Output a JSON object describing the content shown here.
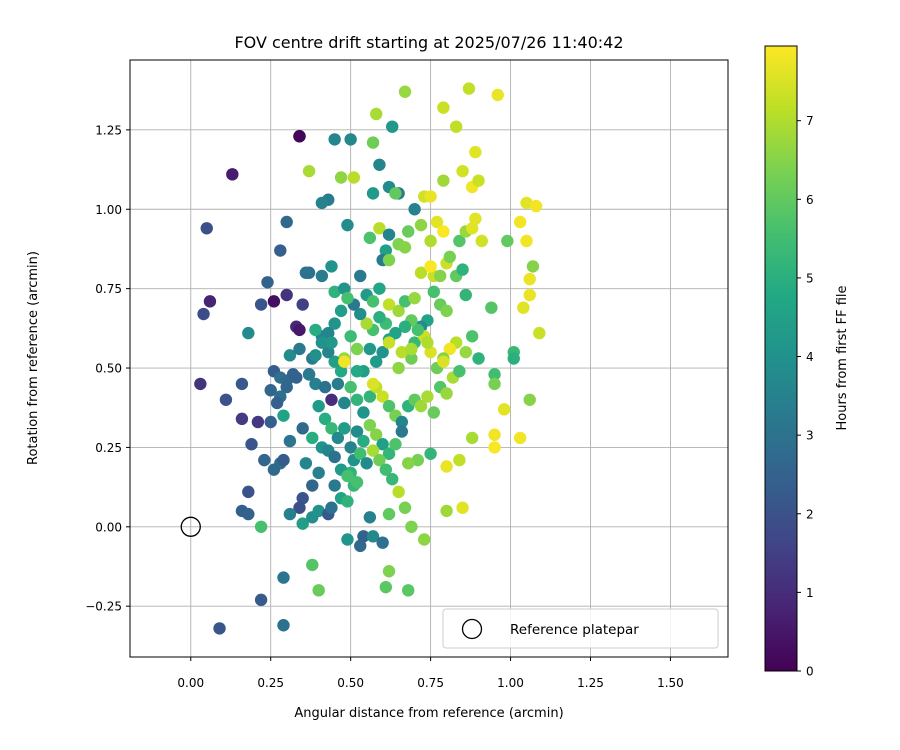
{
  "chart_data": {
    "type": "scatter",
    "title": "FOV centre drift starting at 2025/07/26 11:40:42",
    "xlabel": "Angular distance from reference (arcmin)",
    "ylabel": "Rotation from reference (arcmin)",
    "xlim": [
      -0.19,
      1.68
    ],
    "ylim": [
      -0.41,
      1.47
    ],
    "x_ticks": [
      0.0,
      0.25,
      0.5,
      0.75,
      1.0,
      1.25,
      1.5
    ],
    "x_tick_labels": [
      "0.00",
      "0.25",
      "0.50",
      "0.75",
      "1.00",
      "1.25",
      "1.50"
    ],
    "y_ticks": [
      -0.25,
      0.0,
      0.25,
      0.5,
      0.75,
      1.0,
      1.25
    ],
    "y_tick_labels": [
      "−0.25",
      "0.00",
      "0.25",
      "0.50",
      "0.75",
      "1.00",
      "1.25"
    ],
    "grid": true,
    "legend": {
      "placement": "lower-right",
      "entries": [
        "Reference platepar"
      ]
    },
    "colorbar": {
      "label": "Hours from first FF file",
      "range": [
        0,
        7.95
      ],
      "ticks": [
        0,
        1,
        2,
        3,
        4,
        5,
        6,
        7
      ],
      "tick_labels": [
        "0",
        "1",
        "2",
        "3",
        "4",
        "5",
        "6",
        "7"
      ],
      "colormap": "viridis"
    },
    "reference_point": {
      "x": 0.0,
      "y": 0.0,
      "label": "Reference platepar"
    },
    "points": [
      [
        0.34,
        1.23,
        0.1
      ],
      [
        0.13,
        1.11,
        0.6
      ],
      [
        0.05,
        0.94,
        1.9
      ],
      [
        0.06,
        0.71,
        0.8
      ],
      [
        0.04,
        0.67,
        1.8
      ],
      [
        0.03,
        0.45,
        1.2
      ],
      [
        0.11,
        0.4,
        2.0
      ],
      [
        0.16,
        0.45,
        2.2
      ],
      [
        0.16,
        0.34,
        1.4
      ],
      [
        0.21,
        0.33,
        1.3
      ],
      [
        0.19,
        0.26,
        2.1
      ],
      [
        0.18,
        0.11,
        2.0
      ],
      [
        0.16,
        0.05,
        2.4
      ],
      [
        0.18,
        0.04,
        2.5
      ],
      [
        0.22,
        0.0,
        5.6
      ],
      [
        0.22,
        -0.23,
        2.3
      ],
      [
        0.09,
        -0.32,
        2.1
      ],
      [
        0.29,
        -0.16,
        3.1
      ],
      [
        0.29,
        -0.31,
        3.0
      ],
      [
        0.28,
        0.87,
        2.4
      ],
      [
        0.3,
        0.96,
        2.7
      ],
      [
        0.24,
        0.77,
        2.5
      ],
      [
        0.22,
        0.7,
        2.1
      ],
      [
        0.26,
        0.71,
        0.3
      ],
      [
        0.3,
        0.73,
        1.2
      ],
      [
        0.33,
        0.63,
        0.9
      ],
      [
        0.34,
        0.62,
        0.5
      ],
      [
        0.35,
        0.7,
        1.5
      ],
      [
        0.37,
        0.8,
        2.9
      ],
      [
        0.18,
        0.61,
        3.8
      ],
      [
        0.26,
        0.49,
        2.3
      ],
      [
        0.28,
        0.47,
        2.9
      ],
      [
        0.3,
        0.46,
        2.7
      ],
      [
        0.31,
        0.54,
        3.8
      ],
      [
        0.34,
        0.56,
        3.2
      ],
      [
        0.29,
        0.35,
        4.6
      ],
      [
        0.25,
        0.33,
        2.4
      ],
      [
        0.28,
        0.2,
        2.8
      ],
      [
        0.26,
        0.18,
        2.7
      ],
      [
        0.23,
        0.21,
        2.6
      ],
      [
        0.29,
        0.21,
        2.3
      ],
      [
        0.31,
        0.27,
        3.1
      ],
      [
        0.35,
        0.31,
        2.7
      ],
      [
        0.35,
        0.09,
        2.1
      ],
      [
        0.34,
        0.06,
        1.9
      ],
      [
        0.31,
        0.04,
        3.4
      ],
      [
        0.35,
        0.01,
        4.4
      ],
      [
        0.38,
        0.03,
        3.9
      ],
      [
        0.4,
        0.05,
        4.0
      ],
      [
        0.36,
        0.2,
        3.6
      ],
      [
        0.38,
        0.13,
        2.6
      ],
      [
        0.4,
        0.17,
        3.4
      ],
      [
        0.43,
        0.04,
        2.2
      ],
      [
        0.44,
        0.06,
        3.0
      ],
      [
        0.45,
        0.13,
        3.2
      ],
      [
        0.47,
        0.09,
        4.6
      ],
      [
        0.49,
        -0.04,
        4.1
      ],
      [
        0.49,
        0.08,
        5.1
      ],
      [
        0.51,
        0.13,
        5.2
      ],
      [
        0.5,
        0.17,
        5.1
      ],
      [
        0.52,
        0.14,
        5.6
      ],
      [
        0.38,
        -0.12,
        5.8
      ],
      [
        0.4,
        -0.2,
        6.1
      ],
      [
        0.53,
        -0.06,
        2.7
      ],
      [
        0.54,
        -0.03,
        2.5
      ],
      [
        0.56,
        0.03,
        3.4
      ],
      [
        0.57,
        -0.03,
        3.7
      ],
      [
        0.6,
        -0.05,
        3.0
      ],
      [
        0.62,
        -0.14,
        6.4
      ],
      [
        0.61,
        -0.19,
        5.9
      ],
      [
        0.68,
        -0.2,
        5.9
      ],
      [
        0.73,
        -0.04,
        6.6
      ],
      [
        0.34,
        1.23,
        0.1
      ],
      [
        0.45,
        1.22,
        3.6
      ],
      [
        0.5,
        1.22,
        3.7
      ],
      [
        0.63,
        1.26,
        4.2
      ],
      [
        0.57,
        1.21,
        6.2
      ],
      [
        0.58,
        1.3,
        6.9
      ],
      [
        0.67,
        1.37,
        6.7
      ],
      [
        0.79,
        1.32,
        7.3
      ],
      [
        0.87,
        1.38,
        7.2
      ],
      [
        0.96,
        1.36,
        7.7
      ],
      [
        0.83,
        1.26,
        7.2
      ],
      [
        0.37,
        1.12,
        6.9
      ],
      [
        0.47,
        1.1,
        6.6
      ],
      [
        0.51,
        1.1,
        7.1
      ],
      [
        0.59,
        1.14,
        3.6
      ],
      [
        0.62,
        1.07,
        3.8
      ],
      [
        0.65,
        1.05,
        3.2
      ],
      [
        0.64,
        1.05,
        6.0
      ],
      [
        0.57,
        1.05,
        4.3
      ],
      [
        0.43,
        1.03,
        3.3
      ],
      [
        0.41,
        1.02,
        3.5
      ],
      [
        0.49,
        0.95,
        3.8
      ],
      [
        0.56,
        0.91,
        5.7
      ],
      [
        0.59,
        0.94,
        7.1
      ],
      [
        0.62,
        0.92,
        3.5
      ],
      [
        0.61,
        0.87,
        4.5
      ],
      [
        0.6,
        0.84,
        3.2
      ],
      [
        0.62,
        0.84,
        6.4
      ],
      [
        0.65,
        0.89,
        6.4
      ],
      [
        0.67,
        0.88,
        6.5
      ],
      [
        0.68,
        0.93,
        6.1
      ],
      [
        0.7,
        1.0,
        3.5
      ],
      [
        0.73,
        1.04,
        7.4
      ],
      [
        0.75,
        1.04,
        7.7
      ],
      [
        0.79,
        1.09,
        6.8
      ],
      [
        0.85,
        1.12,
        7.4
      ],
      [
        0.88,
        1.07,
        7.8
      ],
      [
        0.9,
        1.09,
        7.3
      ],
      [
        0.89,
        1.18,
        7.6
      ],
      [
        0.72,
        0.95,
        6.6
      ],
      [
        0.75,
        0.9,
        7.0
      ],
      [
        0.77,
        0.96,
        7.6
      ],
      [
        0.79,
        0.93,
        7.9
      ],
      [
        0.84,
        0.9,
        5.8
      ],
      [
        0.86,
        0.93,
        6.7
      ],
      [
        0.88,
        0.94,
        7.6
      ],
      [
        0.89,
        0.97,
        7.6
      ],
      [
        0.91,
        0.9,
        7.4
      ],
      [
        0.99,
        0.9,
        6.0
      ],
      [
        1.03,
        0.96,
        7.8
      ],
      [
        1.05,
        1.02,
        7.6
      ],
      [
        1.08,
        1.01,
        7.8
      ],
      [
        1.05,
        0.9,
        7.8
      ],
      [
        1.07,
        0.82,
        6.5
      ],
      [
        1.06,
        0.78,
        7.7
      ],
      [
        1.06,
        0.73,
        7.7
      ],
      [
        1.04,
        0.69,
        7.6
      ],
      [
        1.09,
        0.61,
        7.3
      ],
      [
        1.01,
        0.55,
        5.3
      ],
      [
        1.01,
        0.53,
        5.0
      ],
      [
        0.94,
        0.69,
        5.8
      ],
      [
        0.95,
        0.48,
        5.5
      ],
      [
        0.95,
        0.45,
        6.3
      ],
      [
        0.98,
        0.37,
        7.6
      ],
      [
        0.95,
        0.29,
        7.8
      ],
      [
        0.95,
        0.25,
        7.9
      ],
      [
        1.03,
        0.28,
        7.8
      ],
      [
        1.06,
        0.4,
        6.5
      ],
      [
        0.88,
        0.28,
        6.9
      ],
      [
        0.84,
        0.21,
        7.2
      ],
      [
        0.8,
        0.19,
        7.7
      ],
      [
        0.85,
        0.06,
        7.6
      ],
      [
        0.8,
        0.05,
        6.8
      ],
      [
        0.75,
        0.23,
        5.2
      ],
      [
        0.71,
        0.21,
        6.3
      ],
      [
        0.68,
        0.2,
        6.5
      ],
      [
        0.65,
        0.11,
        7.1
      ],
      [
        0.67,
        0.06,
        6.3
      ],
      [
        0.69,
        0.0,
        6.4
      ],
      [
        0.62,
        0.04,
        6.0
      ],
      [
        0.36,
        0.8,
        3.0
      ],
      [
        0.41,
        0.79,
        3.3
      ],
      [
        0.44,
        0.82,
        4.0
      ],
      [
        0.45,
        0.74,
        5.1
      ],
      [
        0.48,
        0.75,
        4.1
      ],
      [
        0.53,
        0.79,
        3.2
      ],
      [
        0.55,
        0.73,
        4.3
      ],
      [
        0.57,
        0.71,
        5.6
      ],
      [
        0.59,
        0.75,
        4.7
      ],
      [
        0.62,
        0.7,
        7.2
      ],
      [
        0.65,
        0.68,
        6.8
      ],
      [
        0.67,
        0.71,
        5.6
      ],
      [
        0.7,
        0.72,
        6.7
      ],
      [
        0.72,
        0.8,
        7.1
      ],
      [
        0.76,
        0.79,
        7.3
      ],
      [
        0.78,
        0.79,
        6.5
      ],
      [
        0.8,
        0.83,
        7.3
      ],
      [
        0.81,
        0.85,
        6.3
      ],
      [
        0.83,
        0.79,
        6.0
      ],
      [
        0.86,
        0.73,
        5.2
      ],
      [
        0.85,
        0.81,
        5.1
      ],
      [
        0.75,
        0.82,
        7.9
      ],
      [
        0.76,
        0.74,
        5.6
      ],
      [
        0.78,
        0.7,
        6.1
      ],
      [
        0.8,
        0.68,
        6.4
      ],
      [
        0.74,
        0.65,
        4.6
      ],
      [
        0.72,
        0.63,
        3.8
      ],
      [
        0.7,
        0.58,
        5.3
      ],
      [
        0.69,
        0.53,
        6.2
      ],
      [
        0.66,
        0.55,
        7.1
      ],
      [
        0.65,
        0.5,
        6.6
      ],
      [
        0.62,
        0.59,
        4.6
      ],
      [
        0.6,
        0.55,
        4.0
      ],
      [
        0.58,
        0.52,
        4.3
      ],
      [
        0.56,
        0.56,
        4.2
      ],
      [
        0.54,
        0.49,
        4.5
      ],
      [
        0.52,
        0.56,
        6.4
      ],
      [
        0.5,
        0.6,
        5.4
      ],
      [
        0.48,
        0.53,
        6.7
      ],
      [
        0.47,
        0.49,
        4.8
      ],
      [
        0.45,
        0.52,
        4.5
      ],
      [
        0.43,
        0.55,
        3.6
      ],
      [
        0.41,
        0.6,
        3.5
      ],
      [
        0.39,
        0.62,
        4.9
      ],
      [
        0.38,
        0.53,
        3.2
      ],
      [
        0.37,
        0.48,
        3.1
      ],
      [
        0.39,
        0.45,
        3.4
      ],
      [
        0.42,
        0.44,
        3.0
      ],
      [
        0.44,
        0.4,
        1.0
      ],
      [
        0.46,
        0.45,
        3.3
      ],
      [
        0.48,
        0.39,
        3.6
      ],
      [
        0.5,
        0.44,
        5.6
      ],
      [
        0.52,
        0.4,
        5.2
      ],
      [
        0.54,
        0.36,
        4.1
      ],
      [
        0.56,
        0.41,
        5.2
      ],
      [
        0.58,
        0.44,
        7.2
      ],
      [
        0.6,
        0.41,
        7.3
      ],
      [
        0.62,
        0.38,
        5.7
      ],
      [
        0.64,
        0.35,
        6.3
      ],
      [
        0.66,
        0.33,
        3.6
      ],
      [
        0.68,
        0.38,
        5.1
      ],
      [
        0.7,
        0.4,
        6.0
      ],
      [
        0.72,
        0.38,
        6.8
      ],
      [
        0.74,
        0.41,
        6.9
      ],
      [
        0.76,
        0.36,
        6.1
      ],
      [
        0.78,
        0.44,
        5.8
      ],
      [
        0.8,
        0.42,
        6.7
      ],
      [
        0.82,
        0.47,
        6.9
      ],
      [
        0.84,
        0.49,
        5.6
      ],
      [
        0.86,
        0.55,
        6.7
      ],
      [
        0.88,
        0.6,
        5.7
      ],
      [
        0.9,
        0.53,
        5.1
      ],
      [
        0.83,
        0.58,
        7.1
      ],
      [
        0.81,
        0.56,
        7.8
      ],
      [
        0.79,
        0.53,
        6.5
      ],
      [
        0.77,
        0.5,
        6.2
      ],
      [
        0.75,
        0.55,
        7.5
      ],
      [
        0.73,
        0.6,
        7.3
      ],
      [
        0.71,
        0.62,
        5.6
      ],
      [
        0.69,
        0.65,
        6.0
      ],
      [
        0.67,
        0.63,
        5.0
      ],
      [
        0.64,
        0.61,
        4.6
      ],
      [
        0.61,
        0.64,
        5.4
      ],
      [
        0.59,
        0.66,
        5.0
      ],
      [
        0.57,
        0.62,
        5.6
      ],
      [
        0.55,
        0.64,
        6.9
      ],
      [
        0.53,
        0.67,
        3.9
      ],
      [
        0.51,
        0.7,
        3.2
      ],
      [
        0.49,
        0.72,
        5.6
      ],
      [
        0.47,
        0.68,
        4.4
      ],
      [
        0.45,
        0.64,
        4.1
      ],
      [
        0.43,
        0.61,
        3.6
      ],
      [
        0.41,
        0.58,
        4.0
      ],
      [
        0.39,
        0.54,
        3.9
      ],
      [
        0.37,
        0.48,
        3.2
      ],
      [
        0.4,
        0.38,
        4.3
      ],
      [
        0.42,
        0.34,
        4.9
      ],
      [
        0.44,
        0.31,
        5.3
      ],
      [
        0.46,
        0.28,
        3.7
      ],
      [
        0.48,
        0.31,
        4.4
      ],
      [
        0.5,
        0.25,
        3.5
      ],
      [
        0.52,
        0.3,
        3.8
      ],
      [
        0.54,
        0.27,
        4.9
      ],
      [
        0.56,
        0.32,
        6.4
      ],
      [
        0.58,
        0.29,
        6.5
      ],
      [
        0.6,
        0.26,
        4.5
      ],
      [
        0.62,
        0.23,
        5.2
      ],
      [
        0.64,
        0.26,
        5.7
      ],
      [
        0.66,
        0.3,
        3.2
      ],
      [
        0.38,
        0.28,
        4.9
      ],
      [
        0.41,
        0.25,
        4.0
      ],
      [
        0.43,
        0.24,
        3.6
      ],
      [
        0.45,
        0.22,
        3.0
      ],
      [
        0.47,
        0.18,
        4.3
      ],
      [
        0.49,
        0.16,
        5.6
      ],
      [
        0.51,
        0.21,
        4.0
      ],
      [
        0.53,
        0.23,
        5.5
      ],
      [
        0.55,
        0.2,
        3.8
      ],
      [
        0.57,
        0.24,
        6.9
      ],
      [
        0.59,
        0.21,
        6.2
      ],
      [
        0.61,
        0.18,
        5.5
      ],
      [
        0.63,
        0.15,
        5.3
      ],
      [
        0.33,
        0.47,
        2.4
      ],
      [
        0.32,
        0.48,
        2.5
      ],
      [
        0.3,
        0.44,
        2.6
      ],
      [
        0.28,
        0.41,
        2.9
      ],
      [
        0.27,
        0.39,
        2.4
      ],
      [
        0.25,
        0.43,
        2.6
      ],
      [
        0.48,
        0.52,
        7.8
      ],
      [
        0.62,
        0.58,
        7.3
      ],
      [
        0.57,
        0.45,
        7.5
      ],
      [
        0.69,
        0.56,
        6.9
      ],
      [
        0.74,
        0.58,
        7.0
      ],
      [
        0.79,
        0.52,
        7.5
      ],
      [
        0.52,
        0.49,
        4.8
      ],
      [
        0.44,
        0.58,
        4.2
      ]
    ]
  }
}
